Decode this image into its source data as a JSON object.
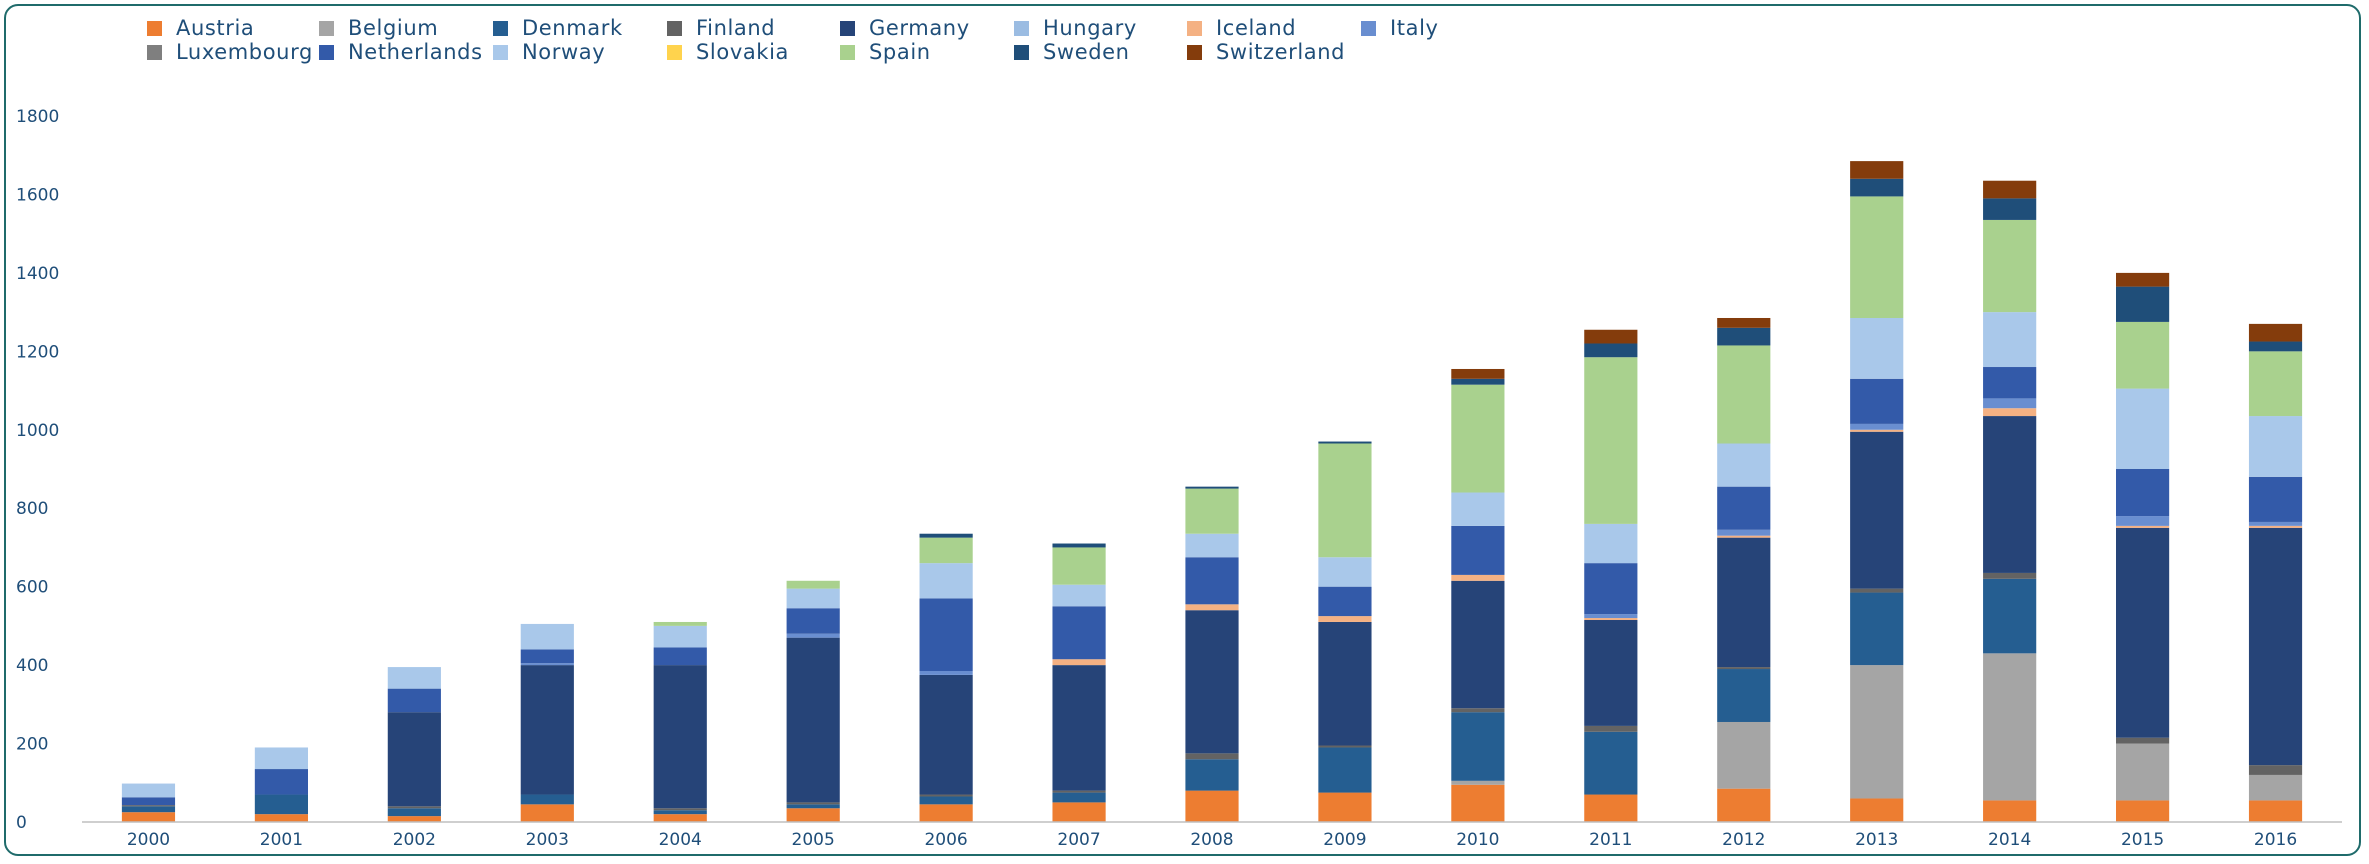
{
  "chart_data": {
    "type": "bar",
    "stacked": true,
    "categories": [
      "2000",
      "2001",
      "2002",
      "2003",
      "2004",
      "2005",
      "2006",
      "2007",
      "2008",
      "2009",
      "2010",
      "2011",
      "2012",
      "2013",
      "2014",
      "2015",
      "2016"
    ],
    "ylim": [
      0,
      1800
    ],
    "yticks": [
      "0",
      "200",
      "400",
      "600",
      "800",
      "1000",
      "1200",
      "1400",
      "1600",
      "1800"
    ],
    "grid": false,
    "legend_position": "top",
    "series": [
      {
        "name": "Austria",
        "color": "#ed7d31",
        "values": [
          25,
          20,
          15,
          45,
          20,
          35,
          45,
          50,
          80,
          75,
          95,
          70,
          85,
          60,
          55,
          55,
          55
        ]
      },
      {
        "name": "Belgium",
        "color": "#a5a5a5",
        "values": [
          0,
          0,
          0,
          0,
          0,
          0,
          0,
          0,
          0,
          0,
          10,
          0,
          170,
          340,
          375,
          145,
          65
        ]
      },
      {
        "name": "Denmark",
        "color": "#255e91",
        "values": [
          15,
          50,
          20,
          25,
          10,
          10,
          20,
          25,
          80,
          115,
          175,
          160,
          135,
          185,
          190,
          0,
          0
        ]
      },
      {
        "name": "Finland",
        "color": "#636363",
        "values": [
          3,
          0,
          5,
          0,
          5,
          5,
          5,
          5,
          15,
          5,
          10,
          15,
          5,
          10,
          15,
          15,
          25
        ]
      },
      {
        "name": "Germany",
        "color": "#264478",
        "values": [
          0,
          0,
          240,
          330,
          365,
          420,
          305,
          320,
          365,
          315,
          325,
          270,
          330,
          400,
          400,
          535,
          605
        ]
      },
      {
        "name": "Hungary",
        "color": "#9bbce2",
        "values": [
          0,
          0,
          0,
          0,
          0,
          0,
          0,
          0,
          0,
          0,
          0,
          0,
          0,
          0,
          0,
          0,
          0
        ]
      },
      {
        "name": "Iceland",
        "color": "#f4b183",
        "values": [
          0,
          0,
          0,
          0,
          0,
          0,
          0,
          15,
          15,
          15,
          15,
          5,
          5,
          5,
          20,
          5,
          5
        ]
      },
      {
        "name": "Italy",
        "color": "#698ed0",
        "values": [
          0,
          0,
          0,
          5,
          0,
          10,
          10,
          0,
          0,
          0,
          0,
          10,
          15,
          15,
          25,
          25,
          10
        ]
      },
      {
        "name": "Luxembourg",
        "color": "#7f7f7f",
        "values": [
          0,
          0,
          0,
          0,
          0,
          0,
          0,
          0,
          0,
          0,
          0,
          0,
          0,
          0,
          0,
          0,
          0
        ]
      },
      {
        "name": "Netherlands",
        "color": "#335aa9",
        "values": [
          20,
          65,
          60,
          35,
          45,
          65,
          185,
          135,
          120,
          75,
          125,
          130,
          110,
          115,
          80,
          120,
          115
        ]
      },
      {
        "name": "Norway",
        "color": "#a9c8ea",
        "values": [
          35,
          55,
          55,
          65,
          55,
          50,
          90,
          55,
          60,
          75,
          85,
          100,
          110,
          155,
          140,
          205,
          155
        ]
      },
      {
        "name": "Slovakia",
        "color": "#ffd34d",
        "values": [
          0,
          0,
          0,
          0,
          0,
          0,
          0,
          0,
          0,
          0,
          0,
          0,
          0,
          0,
          0,
          0,
          0
        ]
      },
      {
        "name": "Spain",
        "color": "#a9d18e",
        "values": [
          0,
          0,
          0,
          0,
          10,
          20,
          65,
          95,
          115,
          290,
          275,
          425,
          250,
          310,
          235,
          170,
          165
        ]
      },
      {
        "name": "Sweden",
        "color": "#1f4e79",
        "values": [
          0,
          0,
          0,
          0,
          0,
          0,
          10,
          10,
          5,
          5,
          15,
          35,
          45,
          45,
          55,
          90,
          25
        ]
      },
      {
        "name": "Switzerland",
        "color": "#843c0c",
        "values": [
          0,
          0,
          0,
          0,
          0,
          0,
          0,
          0,
          0,
          0,
          25,
          35,
          25,
          45,
          45,
          35,
          45
        ]
      }
    ]
  }
}
